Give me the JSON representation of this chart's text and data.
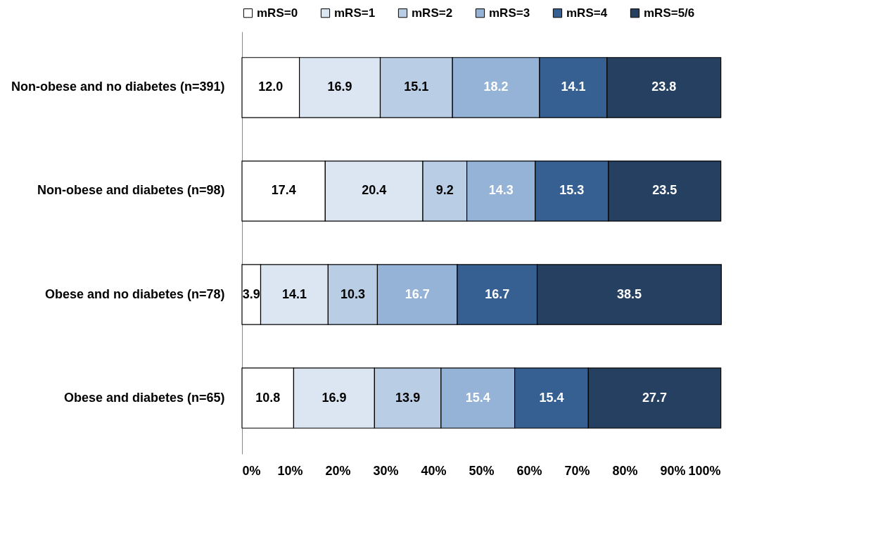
{
  "chart_data": {
    "type": "bar",
    "orientation": "horizontal",
    "stacked": true,
    "categories": [
      "Non-obese and no diabetes (n=391)",
      "Non-obese and diabetes (n=98)",
      "Obese and no diabetes (n=78)",
      "Obese and diabetes (n=65)"
    ],
    "series": [
      {
        "name": "mRS=0",
        "color": "#ffffff",
        "values": [
          12.0,
          17.4,
          3.9,
          10.8
        ],
        "value_labels": [
          "12.0",
          "17.4",
          "3.9",
          "10.8"
        ]
      },
      {
        "name": "mRS=1",
        "color": "#dce6f2",
        "values": [
          16.9,
          20.4,
          14.1,
          16.9
        ]
      },
      {
        "name": "mRS=2",
        "color": "#b9cde5",
        "values": [
          15.1,
          9.2,
          10.3,
          13.9
        ]
      },
      {
        "name": "mRS=3",
        "color": "#95b3d7",
        "values": [
          18.2,
          14.3,
          16.7,
          15.4
        ]
      },
      {
        "name": "mRS=4",
        "color": "#376092",
        "values": [
          14.1,
          15.3,
          16.7,
          15.4
        ]
      },
      {
        "name": "mRS=5/6",
        "color": "#254061",
        "values": [
          23.8,
          23.5,
          38.5,
          27.7
        ]
      }
    ],
    "xlim": [
      0,
      100
    ],
    "xticks": [
      {
        "value": 0,
        "label": "0%"
      },
      {
        "value": 10,
        "label": "10%"
      },
      {
        "value": 20,
        "label": "20%"
      },
      {
        "value": 30,
        "label": "30%"
      },
      {
        "value": 40,
        "label": "40%"
      },
      {
        "value": 50,
        "label": "50%"
      },
      {
        "value": 60,
        "label": "60%"
      },
      {
        "value": 70,
        "label": "70%"
      },
      {
        "value": 80,
        "label": "80%"
      },
      {
        "value": 90,
        "label": "90%"
      },
      {
        "value": 100,
        "label": "100%"
      }
    ],
    "data_labels": true,
    "legend": "top",
    "grid": false
  }
}
